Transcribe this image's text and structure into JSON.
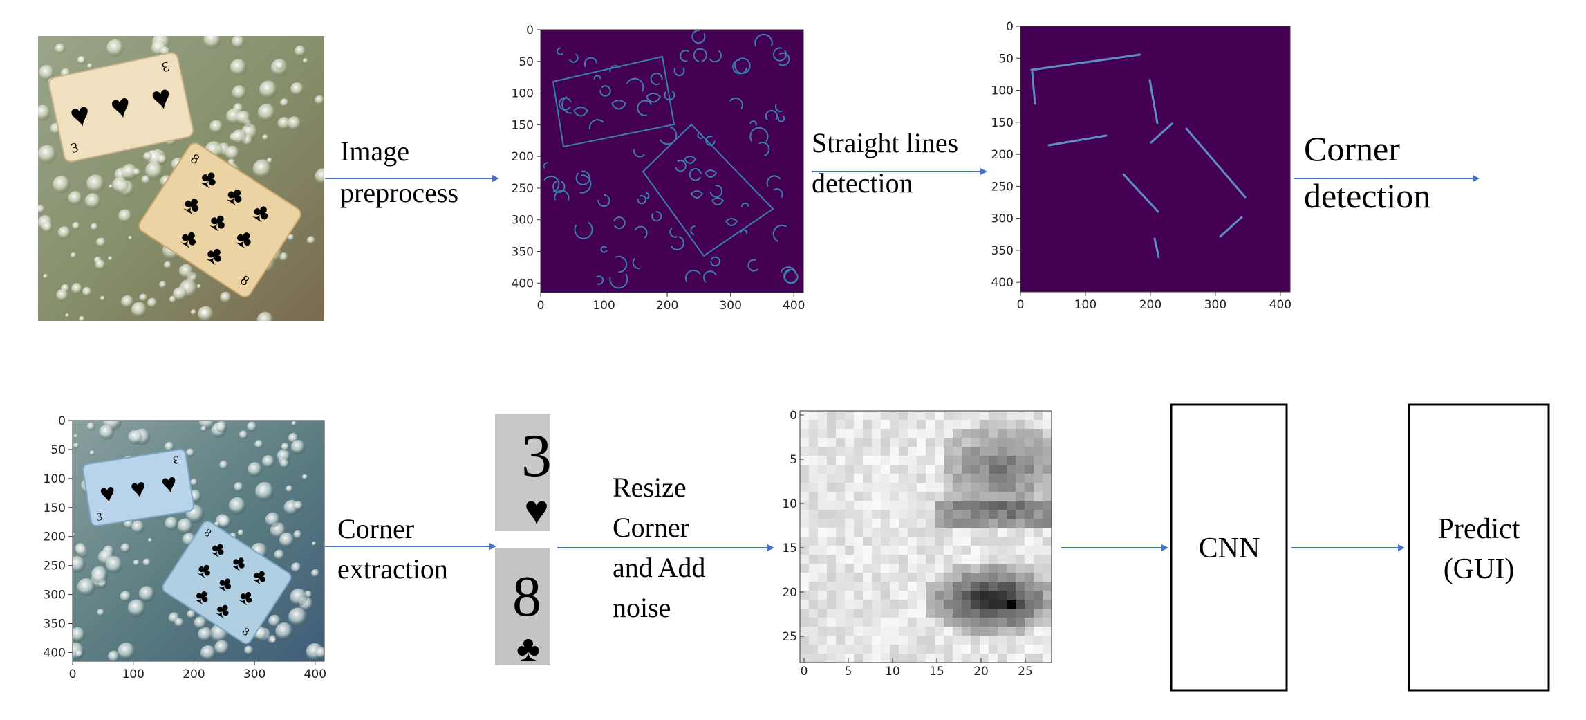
{
  "step_labels": {
    "image_preprocess": [
      "Image",
      "preprocess"
    ],
    "straight_lines": [
      "Straight lines",
      "detection"
    ],
    "corner_detection": [
      "Corner",
      "detection"
    ],
    "corner_extraction": [
      "Corner",
      "extraction"
    ],
    "resize": [
      "Resize",
      "Corner",
      "and Add",
      "noise"
    ]
  },
  "boxes": {
    "cnn": [
      "CNN"
    ],
    "predict": [
      "Predict",
      "(GUI)"
    ]
  },
  "corner_crops": {
    "top_rank": "3",
    "top_suit": "♥",
    "bottom_rank": "8",
    "bottom_suit": "♣"
  },
  "cards": {
    "hearts_rank": "3",
    "clubs_rank": "8",
    "hearts_suit": "♥",
    "clubs_suit": "♣"
  },
  "plots": {
    "edges": {
      "xticks": [
        "0",
        "100",
        "200",
        "300",
        "400"
      ],
      "yticks": [
        "0",
        "50",
        "100",
        "150",
        "200",
        "250",
        "300",
        "350",
        "400"
      ]
    },
    "lines": {
      "xticks": [
        "0",
        "100",
        "200",
        "300",
        "400"
      ],
      "yticks": [
        "0",
        "50",
        "100",
        "150",
        "200",
        "250",
        "300",
        "350",
        "400"
      ]
    },
    "photo": {
      "xticks": [
        "0",
        "100",
        "200",
        "300",
        "400"
      ],
      "yticks": [
        "0",
        "50",
        "100",
        "150",
        "200",
        "250",
        "300",
        "350",
        "400"
      ]
    },
    "noise": {
      "xticks": [
        "0",
        "5",
        "10",
        "15",
        "20",
        "25"
      ],
      "yticks": [
        "0",
        "5",
        "10",
        "15",
        "20",
        "25"
      ]
    }
  },
  "colors": {
    "arrow": "#4472c4",
    "viridis_background": "#440154",
    "edge_line": "#3b7ea8",
    "line_segment": "#5e8fc2",
    "card_light": "#f1e0c0",
    "hearts_red": "#d4341f",
    "clubs_brown": "#8a6a20",
    "card_blue": "#b9d4ea",
    "suit_blue": "#2a4fc4"
  }
}
